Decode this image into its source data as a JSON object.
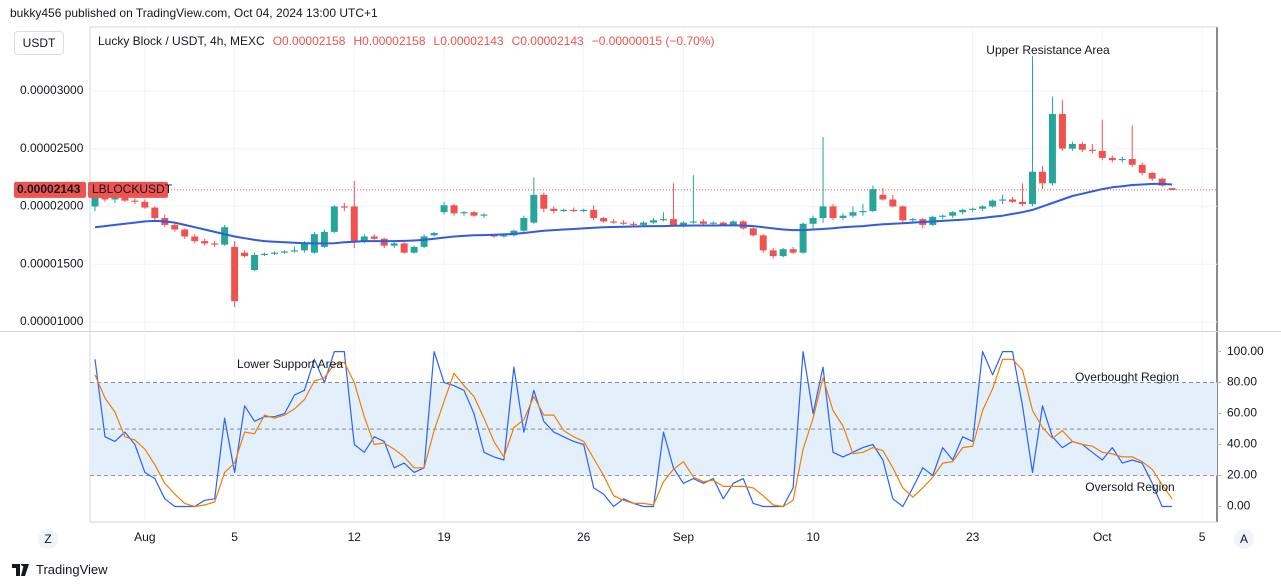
{
  "header": {
    "publisher": "bukky456 published on TradingView.com, Oct 04, 2024 13:00 UTC+1"
  },
  "ui": {
    "currency": "USDT",
    "left_button": "Z",
    "right_button": "A",
    "brand": "TradingView"
  },
  "chart_data": [
    {
      "type": "candlestick",
      "symbol": "Lucky Block / USDT, 4h, MEXC",
      "ohlc_labels": [
        "O0.00002158",
        "H0.00002158",
        "L0.00002143",
        "C0.00002143",
        "−0.00000015 (−0.70%)"
      ],
      "last_price_label": "0.00002143",
      "symbol_tag": "LBLOCKUSDT",
      "annotations": [
        "Upper Resistance Area"
      ],
      "up_color": "#26a69a",
      "down_color": "#ef5350",
      "grid": true,
      "categories": [
        null,
        null,
        null,
        null,
        null,
        "Aug",
        null,
        null,
        null,
        null,
        null,
        null,
        null,
        null,
        "5",
        null,
        null,
        null,
        null,
        null,
        null,
        null,
        null,
        null,
        null,
        null,
        "12",
        null,
        null,
        null,
        null,
        null,
        null,
        null,
        null,
        "19",
        null,
        null,
        null,
        null,
        null,
        null,
        null,
        null,
        null,
        null,
        null,
        null,
        null,
        "26",
        null,
        null,
        null,
        null,
        null,
        null,
        null,
        null,
        null,
        "Sep",
        null,
        null,
        null,
        null,
        null,
        null,
        null,
        null,
        null,
        null,
        null,
        null,
        "10",
        null,
        null,
        null,
        null,
        null,
        null,
        null,
        null,
        null,
        null,
        null,
        null,
        null,
        null,
        null,
        "23",
        null,
        null,
        null,
        null,
        null,
        null,
        null,
        null,
        null,
        null,
        null,
        null,
        "Oct",
        null,
        null,
        null,
        null,
        null,
        null,
        null,
        null,
        null,
        "5",
        null
      ],
      "open": [
        2e-05,
        2.1e-05,
        2.06e-05,
        2.08e-05,
        2.05e-05,
        2.04e-05,
        1.99e-05,
        1.9e-05,
        1.84e-05,
        1.8e-05,
        1.74e-05,
        1.7e-05,
        1.68e-05,
        1.67e-05,
        1.65e-05,
        1.6e-05,
        1.45e-05,
        1.58e-05,
        1.59e-05,
        1.6e-05,
        1.61e-05,
        1.62e-05,
        1.6e-05,
        1.65e-05,
        1.78e-05,
        2e-05,
        2e-05,
        1.7e-05,
        1.74e-05,
        1.72e-05,
        1.66e-05,
        1.68e-05,
        1.6e-05,
        1.65e-05,
        1.75e-05,
        1.95e-05,
        2.01e-05,
        1.94e-05,
        1.95e-05,
        1.92e-05,
        1.75e-05,
        1.74e-05,
        1.75e-05,
        1.79e-05,
        1.86e-05,
        2.1e-05,
        1.98e-05,
        1.96e-05,
        1.97e-05,
        1.96e-05,
        1.97e-05,
        1.9e-05,
        1.87e-05,
        1.86e-05,
        1.85e-05,
        1.84e-05,
        1.86e-05,
        1.88e-05,
        1.89e-05,
        1.84e-05,
        1.86e-05,
        1.87e-05,
        1.85e-05,
        1.86e-05,
        1.84e-05,
        1.87e-05,
        1.81e-05,
        1.75e-05,
        1.62e-05,
        1.57e-05,
        1.63e-05,
        1.6e-05,
        1.85e-05,
        1.9e-05,
        2e-05,
        1.9e-05,
        1.92e-05,
        1.95e-05,
        1.96e-05,
        2.1e-05,
        2.06e-05,
        2e-05,
        1.88e-05,
        1.89e-05,
        1.84e-05,
        1.91e-05,
        1.92e-05,
        1.95e-05,
        1.97e-05,
        1.98e-05,
        2e-05,
        2.05e-05,
        2.06e-05,
        2.04e-05,
        2.02e-05,
        2.3e-05,
        2.2e-05,
        2.8e-05,
        2.5e-05,
        2.54e-05,
        2.49e-05,
        2.48e-05,
        2.42e-05,
        2.4e-05,
        2.41e-05,
        2.36e-05,
        2.29e-05,
        2.24e-05,
        2.158e-05,
        null,
        null,
        null,
        null
      ],
      "high": [
        2.12e-05,
        2.15e-05,
        2.11e-05,
        2.1e-05,
        2.07e-05,
        2.06e-05,
        2e-05,
        1.93e-05,
        1.86e-05,
        1.81e-05,
        1.76e-05,
        1.72e-05,
        1.7e-05,
        1.84e-05,
        1.7e-05,
        1.62e-05,
        1.6e-05,
        1.6e-05,
        1.61e-05,
        1.62e-05,
        1.65e-05,
        1.7e-05,
        1.78e-05,
        1.8e-05,
        2.01e-05,
        2.03e-05,
        2.22e-05,
        1.76e-05,
        1.76e-05,
        1.73e-05,
        1.7e-05,
        1.69e-05,
        1.66e-05,
        1.76e-05,
        1.78e-05,
        2.04e-05,
        2.02e-05,
        1.96e-05,
        1.96e-05,
        1.94e-05,
        1.76e-05,
        1.76e-05,
        1.8e-05,
        1.92e-05,
        2.25e-05,
        2.12e-05,
        2e-05,
        1.98e-05,
        1.99e-05,
        1.98e-05,
        2.01e-05,
        1.91e-05,
        1.89e-05,
        1.88e-05,
        1.87e-05,
        1.87e-05,
        1.9e-05,
        1.95e-05,
        2.2e-05,
        1.87e-05,
        2.27e-05,
        1.89e-05,
        1.87e-05,
        1.87e-05,
        1.88e-05,
        1.88e-05,
        1.82e-05,
        1.76e-05,
        1.64e-05,
        1.64e-05,
        1.65e-05,
        1.86e-05,
        1.92e-05,
        2.6e-05,
        2.02e-05,
        1.94e-05,
        2e-05,
        2.02e-05,
        2.18e-05,
        2.16e-05,
        2.1e-05,
        2.01e-05,
        1.9e-05,
        1.9e-05,
        1.92e-05,
        1.93e-05,
        1.96e-05,
        1.98e-05,
        1.99e-05,
        2.01e-05,
        2.06e-05,
        2.1e-05,
        2.08e-05,
        2.2e-05,
        3.3e-05,
        2.35e-05,
        2.95e-05,
        2.92e-05,
        2.56e-05,
        2.56e-05,
        2.54e-05,
        2.75e-05,
        2.44e-05,
        2.43e-05,
        2.7e-05,
        2.38e-05,
        2.3e-05,
        2.25e-05,
        2.158e-05,
        null,
        null,
        null,
        null
      ],
      "low": [
        1.96e-05,
        2.04e-05,
        2.03e-05,
        2.04e-05,
        2.02e-05,
        1.98e-05,
        1.88e-05,
        1.82e-05,
        1.78e-05,
        1.72e-05,
        1.68e-05,
        1.66e-05,
        1.65e-05,
        1.66e-05,
        1.13e-05,
        1.56e-05,
        1.44e-05,
        1.57e-05,
        1.58e-05,
        1.59e-05,
        1.6e-05,
        1.6e-05,
        1.59e-05,
        1.64e-05,
        1.77e-05,
        1.96e-05,
        1.64e-05,
        1.68e-05,
        1.7e-05,
        1.64e-05,
        1.64e-05,
        1.59e-05,
        1.59e-05,
        1.64e-05,
        1.74e-05,
        1.93e-05,
        1.92e-05,
        1.92e-05,
        1.91e-05,
        1.9e-05,
        1.73e-05,
        1.73e-05,
        1.74e-05,
        1.78e-05,
        1.85e-05,
        1.95e-05,
        1.94e-05,
        1.95e-05,
        1.95e-05,
        1.95e-05,
        1.88e-05,
        1.86e-05,
        1.85e-05,
        1.84e-05,
        1.82e-05,
        1.83e-05,
        1.85e-05,
        1.87e-05,
        1.83e-05,
        1.82e-05,
        1.85e-05,
        1.84e-05,
        1.84e-05,
        1.83e-05,
        1.83e-05,
        1.8e-05,
        1.74e-05,
        1.6e-05,
        1.55e-05,
        1.56e-05,
        1.59e-05,
        1.59e-05,
        1.8e-05,
        1.86e-05,
        1.88e-05,
        1.88e-05,
        1.9e-05,
        1.92e-05,
        1.95e-05,
        2.05e-05,
        1.99e-05,
        1.86e-05,
        1.86e-05,
        1.81e-05,
        1.83e-05,
        1.89e-05,
        1.9e-05,
        1.93e-05,
        1.95e-05,
        1.96e-05,
        1.99e-05,
        2.02e-05,
        2.03e-05,
        2e-05,
        2e-05,
        2.15e-05,
        2.18e-05,
        2.48e-05,
        2.48e-05,
        2.47e-05,
        2.46e-05,
        2.4e-05,
        2.38e-05,
        2.38e-05,
        2.34e-05,
        2.27e-05,
        2.22e-05,
        2.17e-05,
        2.143e-05,
        null,
        null,
        null,
        null
      ],
      "close": [
        2.1e-05,
        2.06e-05,
        2.08e-05,
        2.05e-05,
        2.04e-05,
        1.99e-05,
        1.9e-05,
        1.84e-05,
        1.8e-05,
        1.74e-05,
        1.7e-05,
        1.68e-05,
        1.67e-05,
        1.82e-05,
        1.18e-05,
        1.57e-05,
        1.58e-05,
        1.59e-05,
        1.6e-05,
        1.61e-05,
        1.62e-05,
        1.68e-05,
        1.76e-05,
        1.78e-05,
        2e-05,
        1.99e-05,
        1.7e-05,
        1.74e-05,
        1.72e-05,
        1.66e-05,
        1.68e-05,
        1.6e-05,
        1.65e-05,
        1.74e-05,
        1.77e-05,
        2.01e-05,
        1.94e-05,
        1.95e-05,
        1.92e-05,
        1.93e-05,
        1.74e-05,
        1.75e-05,
        1.79e-05,
        1.9e-05,
        2.1e-05,
        1.98e-05,
        1.96e-05,
        1.97e-05,
        1.96e-05,
        1.97e-05,
        1.9e-05,
        1.87e-05,
        1.86e-05,
        1.85e-05,
        1.84e-05,
        1.86e-05,
        1.88e-05,
        1.89e-05,
        1.84e-05,
        1.86e-05,
        1.87e-05,
        1.85e-05,
        1.86e-05,
        1.84e-05,
        1.87e-05,
        1.81e-05,
        1.75e-05,
        1.62e-05,
        1.57e-05,
        1.63e-05,
        1.6e-05,
        1.85e-05,
        1.9e-05,
        2e-05,
        1.9e-05,
        1.92e-05,
        1.95e-05,
        1.96e-05,
        2.15e-05,
        2.06e-05,
        2e-05,
        1.88e-05,
        1.89e-05,
        1.84e-05,
        1.91e-05,
        1.92e-05,
        1.95e-05,
        1.97e-05,
        1.98e-05,
        2e-05,
        2.05e-05,
        2.06e-05,
        2.04e-05,
        2.02e-05,
        2.3e-05,
        2.2e-05,
        2.8e-05,
        2.5e-05,
        2.54e-05,
        2.49e-05,
        2.48e-05,
        2.42e-05,
        2.4e-05,
        2.41e-05,
        2.36e-05,
        2.29e-05,
        2.24e-05,
        2.18e-05,
        2.143e-05,
        null,
        null,
        null,
        null
      ],
      "line": {
        "color": "#2f5ce0",
        "values": [
          1.82e-05,
          1.83e-05,
          1.84e-05,
          1.85e-05,
          1.86e-05,
          1.87e-05,
          1.875e-05,
          1.87e-05,
          1.86e-05,
          1.84e-05,
          1.82e-05,
          1.8e-05,
          1.78e-05,
          1.76e-05,
          1.74e-05,
          1.725e-05,
          1.71e-05,
          1.7e-05,
          1.695e-05,
          1.69e-05,
          1.685e-05,
          1.682e-05,
          1.68e-05,
          1.68e-05,
          1.682e-05,
          1.69e-05,
          1.695e-05,
          1.7e-05,
          1.7e-05,
          1.7e-05,
          1.7e-05,
          1.702e-05,
          1.705e-05,
          1.71e-05,
          1.72e-05,
          1.73e-05,
          1.74e-05,
          1.745e-05,
          1.75e-05,
          1.752e-05,
          1.755e-05,
          1.758e-05,
          1.762e-05,
          1.77e-05,
          1.78e-05,
          1.79e-05,
          1.795e-05,
          1.8e-05,
          1.805e-05,
          1.81e-05,
          1.815e-05,
          1.82e-05,
          1.822e-05,
          1.824e-05,
          1.826e-05,
          1.828e-05,
          1.83e-05,
          1.83e-05,
          1.832e-05,
          1.834e-05,
          1.835e-05,
          1.835e-05,
          1.835e-05,
          1.836e-05,
          1.836e-05,
          1.835e-05,
          1.83e-05,
          1.82e-05,
          1.81e-05,
          1.8e-05,
          1.795e-05,
          1.795e-05,
          1.8e-05,
          1.805e-05,
          1.812e-05,
          1.82e-05,
          1.825e-05,
          1.83e-05,
          1.838e-05,
          1.845e-05,
          1.85e-05,
          1.855e-05,
          1.86e-05,
          1.865e-05,
          1.87e-05,
          1.875e-05,
          1.88e-05,
          1.885e-05,
          1.892e-05,
          1.9e-05,
          1.91e-05,
          1.92e-05,
          1.935e-05,
          1.95e-05,
          1.97e-05,
          2e-05,
          2.03e-05,
          2.06e-05,
          2.09e-05,
          2.11e-05,
          2.13e-05,
          2.15e-05,
          2.165e-05,
          2.175e-05,
          2.185e-05,
          2.19e-05,
          2.195e-05,
          2.195e-05,
          2.19e-05,
          null,
          null,
          null,
          null
        ]
      },
      "ylim": [
        9.31e-06,
        3.552e-05
      ],
      "yticks": [
        {
          "value": 1e-05,
          "label": "0.00001000"
        },
        {
          "value": 1.5e-05,
          "label": "0.00001500"
        },
        {
          "value": 2e-05,
          "label": "0.00002000"
        },
        {
          "value": 2.5e-05,
          "label": "0.00002500"
        },
        {
          "value": 3e-05,
          "label": "0.00003000"
        }
      ]
    },
    {
      "type": "line",
      "annotations": [
        "Lower Support Area",
        "Overbought Region",
        "Oversold Region"
      ],
      "levels": [
        80,
        50,
        20
      ],
      "band_color": "#e3f0fc",
      "grid": false,
      "series": [
        {
          "color": "#2962ff",
          "values": [
            95,
            45,
            42,
            48,
            40,
            22,
            18,
            5,
            0,
            0,
            0,
            4,
            5,
            57,
            22,
            65,
            55,
            58,
            58,
            60,
            72,
            75,
            95,
            80,
            100,
            100,
            40,
            35,
            45,
            42,
            25,
            28,
            22,
            25,
            100,
            80,
            78,
            75,
            60,
            35,
            32,
            30,
            90,
            48,
            75,
            55,
            48,
            45,
            42,
            40,
            12,
            8,
            0,
            5,
            2,
            0,
            0,
            48,
            25,
            15,
            18,
            15,
            18,
            5,
            15,
            18,
            2,
            0,
            0,
            0,
            12,
            100,
            60,
            90,
            35,
            32,
            35,
            38,
            40,
            30,
            5,
            0,
            12,
            25,
            20,
            38,
            30,
            45,
            42,
            100,
            85,
            100,
            100,
            65,
            22,
            65,
            45,
            38,
            42,
            40,
            35,
            30,
            38,
            28,
            30,
            28,
            15,
            0,
            0,
            null,
            null,
            null,
            null
          ]
        },
        {
          "color": "#f57c00",
          "values": [
            85,
            70,
            61,
            45,
            43,
            37,
            27,
            15,
            8,
            2,
            0,
            1,
            3,
            22,
            28,
            48,
            47,
            59,
            57,
            59,
            63,
            69,
            81,
            83,
            92,
            93,
            80,
            58,
            40,
            41,
            37,
            32,
            25,
            25,
            49,
            68,
            86,
            78,
            71,
            57,
            42,
            32,
            51,
            56,
            71,
            59,
            59,
            49,
            45,
            42,
            31,
            20,
            7,
            4,
            2,
            2,
            1,
            16,
            24,
            29,
            19,
            16,
            17,
            13,
            13,
            13,
            12,
            7,
            1,
            0,
            4,
            37,
            57,
            83,
            62,
            52,
            34,
            35,
            38,
            36,
            25,
            12,
            6,
            12,
            19,
            28,
            29,
            38,
            39,
            62,
            76,
            95,
            95,
            88,
            62,
            51,
            44,
            49,
            42,
            40,
            39,
            35,
            34,
            32,
            32,
            29,
            24,
            14,
            5,
            null,
            null,
            null,
            null
          ]
        }
      ],
      "ylim": [
        -10,
        112
      ],
      "yticks": [
        {
          "value": 0,
          "label": "0.00"
        },
        {
          "value": 20,
          "label": "20.00"
        },
        {
          "value": 40,
          "label": "40.00"
        },
        {
          "value": 60,
          "label": "60.00"
        },
        {
          "value": 80,
          "label": "80.00"
        },
        {
          "value": 100,
          "label": "100.00"
        }
      ]
    }
  ]
}
